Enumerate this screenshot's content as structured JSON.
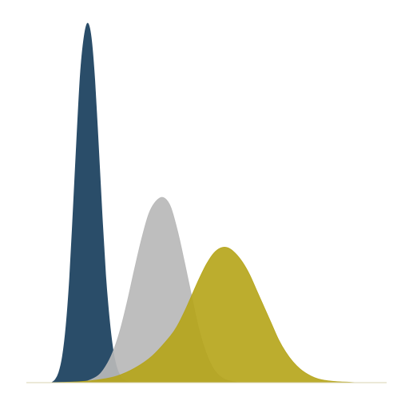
{
  "chart_data": {
    "type": "area",
    "title": "",
    "xlabel": "",
    "ylabel": "",
    "xlim": [
      0,
      100
    ],
    "ylim": [
      0,
      1.0
    ],
    "grid": false,
    "legend": "none",
    "series": [
      {
        "color": "#2a4d69",
        "opacity": 1.0,
        "x": [
          7,
          8,
          9,
          10,
          11,
          12,
          13,
          14,
          15,
          16,
          17,
          18,
          19,
          20,
          21,
          22,
          23,
          24,
          25,
          26,
          27,
          28,
          29,
          30,
          31,
          32,
          33,
          34,
          35,
          36,
          37
        ],
        "y": [
          0.0,
          0.008,
          0.028,
          0.072,
          0.156,
          0.29,
          0.48,
          0.68,
          0.86,
          0.96,
          1.0,
          0.96,
          0.84,
          0.66,
          0.47,
          0.3,
          0.18,
          0.095,
          0.045,
          0.02,
          0.008,
          0.003,
          0.001,
          0.0,
          0.0,
          0.0,
          0.0,
          0.0,
          0.0,
          0.0,
          0.0
        ]
      },
      {
        "color": "#b9b9b9",
        "opacity": 0.92,
        "x": [
          14,
          17,
          20,
          22,
          24,
          26,
          28,
          30,
          32,
          34,
          36,
          38,
          40,
          42,
          44,
          46,
          48,
          50,
          52,
          54,
          56,
          58,
          60
        ],
        "y": [
          0.0,
          0.005,
          0.02,
          0.045,
          0.085,
          0.145,
          0.225,
          0.315,
          0.4,
          0.47,
          0.505,
          0.515,
          0.49,
          0.42,
          0.33,
          0.235,
          0.145,
          0.08,
          0.038,
          0.016,
          0.006,
          0.002,
          0.0
        ]
      },
      {
        "color": "#b5a417",
        "opacity": 0.9,
        "x": [
          6,
          10,
          15,
          20,
          25,
          30,
          35,
          40,
          42,
          44,
          46,
          48,
          50,
          52,
          54,
          56,
          58,
          60,
          62,
          64,
          66,
          68,
          70,
          72,
          74,
          76,
          78,
          80,
          82,
          84,
          86,
          88,
          90,
          92,
          94,
          96,
          98
        ],
        "y": [
          0.0,
          0.001,
          0.003,
          0.008,
          0.018,
          0.04,
          0.075,
          0.13,
          0.16,
          0.2,
          0.245,
          0.29,
          0.33,
          0.36,
          0.375,
          0.375,
          0.36,
          0.335,
          0.3,
          0.255,
          0.21,
          0.165,
          0.12,
          0.085,
          0.058,
          0.038,
          0.024,
          0.014,
          0.008,
          0.005,
          0.003,
          0.002,
          0.001,
          0.0,
          0.0,
          0.0,
          0.0
        ]
      }
    ]
  }
}
